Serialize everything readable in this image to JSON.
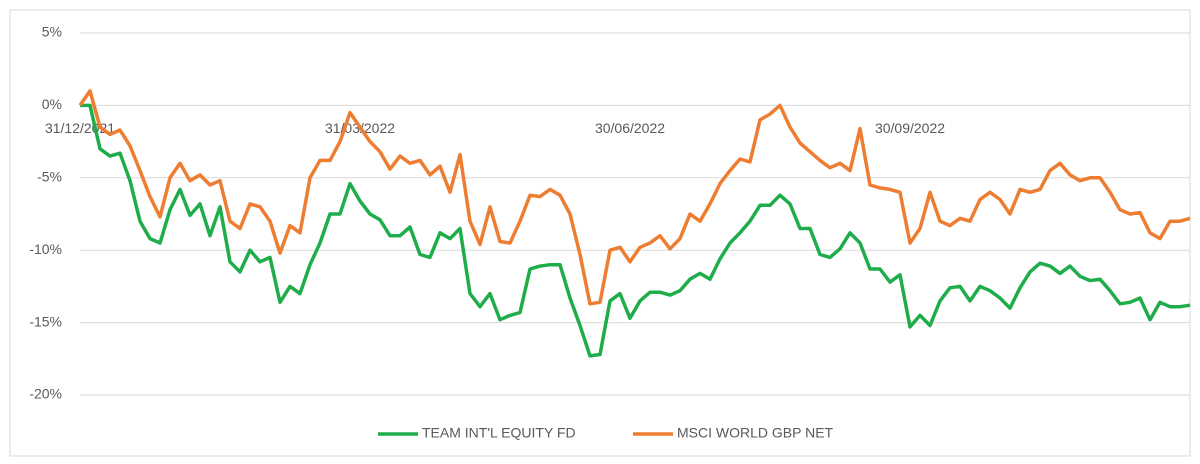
{
  "chart_data": {
    "type": "line",
    "categories": [
      "31/12/2021",
      null,
      null,
      null,
      null,
      null,
      null,
      null,
      null,
      null,
      null,
      null,
      null,
      null,
      null,
      null,
      null,
      null,
      null,
      null,
      null,
      null,
      null,
      null,
      null,
      null,
      null,
      null,
      "31/03/2022",
      null,
      null,
      null,
      null,
      null,
      null,
      null,
      null,
      null,
      null,
      null,
      null,
      null,
      null,
      null,
      null,
      null,
      null,
      null,
      null,
      null,
      null,
      null,
      null,
      null,
      null,
      "30/06/2022",
      null,
      null,
      null,
      null,
      null,
      null,
      null,
      null,
      null,
      null,
      null,
      null,
      null,
      null,
      null,
      null,
      null,
      null,
      null,
      null,
      null,
      null,
      null,
      null,
      null,
      null,
      null,
      "30/09/2022",
      null,
      null,
      null,
      null,
      null,
      null,
      null,
      null,
      null,
      null,
      null,
      null,
      null,
      null,
      null,
      null,
      null,
      null,
      null,
      null,
      null,
      null,
      null,
      null,
      null,
      null,
      null,
      null
    ],
    "series": [
      {
        "name": "TEAM INT'L EQUITY FD",
        "color": "#1fad4b",
        "values": [
          0,
          0,
          -3,
          -3.5,
          -3.3,
          -5.2,
          -8,
          -9.2,
          -9.5,
          -7.2,
          -5.8,
          -7.6,
          -6.8,
          -9,
          -7,
          -10.8,
          -11.5,
          -10,
          -10.8,
          -10.5,
          -13.6,
          -12.5,
          -13,
          -11,
          -9.5,
          -7.5,
          -7.5,
          -5.4,
          -6.6,
          -7.5,
          -7.9,
          -9,
          -9,
          -8.4,
          -10.3,
          -10.5,
          -8.8,
          -9.2,
          -8.5,
          -13,
          -13.9,
          -13,
          -14.8,
          -14.5,
          -14.3,
          -11.3,
          -11.1,
          -11,
          -11,
          -13.3,
          -15.2,
          -17.3,
          -17.2,
          -13.5,
          -13,
          -14.7,
          -13.5,
          -12.9,
          -12.9,
          -13.1,
          -12.8,
          -12,
          -11.6,
          -12,
          -10.6,
          -9.5,
          -8.8,
          -8,
          -6.9,
          -6.9,
          -6.2,
          -6.8,
          -8.5,
          -8.5,
          -10.3,
          -10.5,
          -9.9,
          -8.8,
          -9.5,
          -11.3,
          -11.3,
          -12.2,
          -11.7,
          -15.3,
          -14.5,
          -15.2,
          -13.5,
          -12.6,
          -12.5,
          -13.5,
          -12.5,
          -12.8,
          -13.3,
          -14,
          -12.6,
          -11.5,
          -10.9,
          -11.1,
          -11.6,
          -11.1,
          -11.8,
          -12.1,
          -12,
          -12.8,
          -13.7,
          -13.6,
          -13.3,
          -14.8,
          -13.6,
          -13.9,
          -13.9,
          -13.8
        ]
      },
      {
        "name": "MSCI WORLD GBP NET",
        "color": "#ed7d31",
        "values": [
          0,
          1,
          -1.5,
          -2,
          -1.7,
          -2.8,
          -4.5,
          -6.3,
          -7.7,
          -5,
          -4,
          -5.2,
          -4.8,
          -5.5,
          -5.2,
          -8,
          -8.5,
          -6.8,
          -7,
          -8,
          -10.2,
          -8.3,
          -8.8,
          -5,
          -3.8,
          -3.8,
          -2.5,
          -0.5,
          -1.5,
          -2.5,
          -3.2,
          -4.4,
          -3.5,
          -4,
          -3.8,
          -4.8,
          -4.2,
          -6,
          -3.4,
          -8,
          -9.6,
          -7,
          -9.4,
          -9.5,
          -8,
          -6.2,
          -6.3,
          -5.8,
          -6.2,
          -7.5,
          -10.3,
          -13.7,
          -13.6,
          -10,
          -9.8,
          -10.8,
          -9.8,
          -9.5,
          -9,
          -9.9,
          -9.2,
          -7.5,
          -8,
          -6.8,
          -5.4,
          -4.5,
          -3.7,
          -3.9,
          -1,
          -0.6,
          0,
          -1.5,
          -2.6,
          -3.2,
          -3.8,
          -4.3,
          -4,
          -4.5,
          -1.6,
          -5.5,
          -5.7,
          -5.8,
          -6,
          -9.5,
          -8.5,
          -6,
          -8,
          -8.3,
          -7.8,
          -8,
          -6.5,
          -6,
          -6.5,
          -7.5,
          -5.8,
          -6,
          -5.8,
          -4.5,
          -4,
          -4.8,
          -5.2,
          -5,
          -5,
          -6,
          -7.2,
          -7.5,
          -7.4,
          -8.8,
          -9.2,
          -8,
          -8,
          -7.8
        ]
      }
    ],
    "ylim": [
      -20,
      5
    ],
    "yticks": [
      {
        "value": 5,
        "label": "5%"
      },
      {
        "value": 0,
        "label": "0%"
      },
      {
        "value": -5,
        "label": "-5%"
      },
      {
        "value": -10,
        "label": "-10%"
      },
      {
        "value": -15,
        "label": "-15%"
      },
      {
        "value": -20,
        "label": "-20%"
      }
    ],
    "grid": true,
    "legend": "bottom"
  }
}
